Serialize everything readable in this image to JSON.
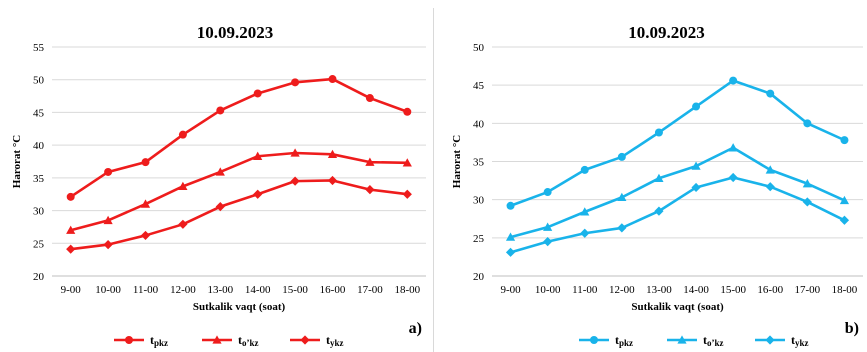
{
  "chart_data": [
    {
      "type": "line",
      "title": "10.09.2023",
      "xlabel": "Sutkalik vaqt  (soat)",
      "ylabel": "Harorat  °C",
      "panel_label": "a)",
      "categories": [
        "9-00",
        "10-00",
        "11-00",
        "12-00",
        "13-00",
        "14-00",
        "15-00",
        "16-00",
        "17-00",
        "18-00"
      ],
      "ylim": [
        20,
        55
      ],
      "yticks": [
        20,
        25,
        30,
        35,
        40,
        45,
        50,
        55
      ],
      "grid": true,
      "legend_position": "bottom",
      "color": "#ee1c1c",
      "series": [
        {
          "name_main": "t",
          "name_sub": "pkz",
          "marker": "circle",
          "values": [
            32.1,
            35.9,
            37.4,
            41.6,
            45.3,
            47.9,
            49.6,
            50.1,
            47.2,
            45.1
          ]
        },
        {
          "name_main": "t",
          "name_sub": "o’kz",
          "marker": "triangle",
          "values": [
            27.0,
            28.5,
            31.0,
            33.7,
            35.9,
            38.3,
            38.8,
            38.6,
            37.4,
            37.3
          ]
        },
        {
          "name_main": "t",
          "name_sub": "ykz",
          "marker": "diamond",
          "values": [
            24.1,
            24.8,
            26.2,
            27.9,
            30.6,
            32.5,
            34.5,
            34.6,
            33.2,
            32.5
          ]
        }
      ]
    },
    {
      "type": "line",
      "title": "10.09.2023",
      "xlabel": "Sutkalik vaqt  (soat)",
      "ylabel": "Harorat  °C",
      "panel_label": "b)",
      "categories": [
        "9-00",
        "10-00",
        "11-00",
        "12-00",
        "13-00",
        "14-00",
        "15-00",
        "16-00",
        "17-00",
        "18-00"
      ],
      "ylim": [
        20,
        50
      ],
      "yticks": [
        20,
        25,
        30,
        35,
        40,
        45,
        50
      ],
      "grid": true,
      "legend_position": "bottom",
      "color": "#19b3ea",
      "series": [
        {
          "name_main": "t",
          "name_sub": "pkz",
          "marker": "circle",
          "values": [
            29.2,
            31.0,
            33.9,
            35.6,
            38.8,
            42.2,
            45.6,
            43.9,
            40.0,
            37.8
          ]
        },
        {
          "name_main": "t",
          "name_sub": "o’kz",
          "marker": "triangle",
          "values": [
            25.1,
            26.4,
            28.4,
            30.3,
            32.8,
            34.4,
            36.8,
            33.9,
            32.1,
            29.9
          ]
        },
        {
          "name_main": "t",
          "name_sub": "ykz",
          "marker": "diamond",
          "values": [
            23.1,
            24.5,
            25.6,
            26.3,
            28.5,
            31.6,
            32.9,
            31.7,
            29.7,
            27.3
          ]
        }
      ]
    }
  ]
}
